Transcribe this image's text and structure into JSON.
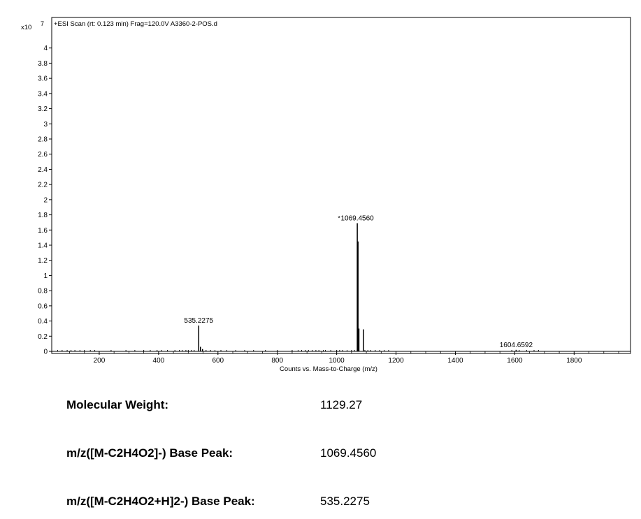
{
  "chart_data": {
    "type": "bar",
    "title": "+ESI Scan (rt: 0.123 min) Frag=120.0V A3360-2-POS.d",
    "xlabel": "Counts vs. Mass-to-Charge (m/z)",
    "ylabel": "",
    "y_exponent_label": "x10",
    "y_exponent": "7",
    "xlim": [
      40,
      1990
    ],
    "ylim": [
      0,
      4.2
    ],
    "x_ticks": [
      200,
      400,
      600,
      800,
      1000,
      1200,
      1400,
      1600,
      1800
    ],
    "y_ticks": [
      0,
      0.2,
      0.4,
      0.6,
      0.8,
      1,
      1.2,
      1.4,
      1.6,
      1.8,
      2,
      2.2,
      2.4,
      2.6,
      2.8,
      3,
      3.2,
      3.4,
      3.6,
      3.8,
      4
    ],
    "grid": false,
    "legend": "none",
    "line_color": "#000000",
    "peaks": [
      {
        "x": 535.2275,
        "y": 0.34
      },
      {
        "x": 541,
        "y": 0.06
      },
      {
        "x": 548,
        "y": 0.03
      },
      {
        "x": 1069.456,
        "y": 1.69
      },
      {
        "x": 1072,
        "y": 1.45
      },
      {
        "x": 1075,
        "y": 0.3
      },
      {
        "x": 1090,
        "y": 0.29
      },
      {
        "x": 1604.6592,
        "y": 0.02
      }
    ],
    "noise": [
      60,
      75,
      92,
      105,
      118,
      135,
      150,
      170,
      185,
      240,
      290,
      320,
      350,
      372,
      395,
      410,
      430,
      455,
      470,
      480,
      492,
      500,
      510,
      520,
      560,
      575,
      590,
      610,
      630,
      660,
      690,
      720,
      760,
      800,
      850,
      870,
      882,
      895,
      905,
      918,
      930,
      940,
      955,
      962,
      980,
      1000,
      1010,
      1020,
      1035,
      1050,
      1060,
      1095,
      1105,
      1115,
      1130,
      1145,
      1160,
      1175,
      1590,
      1615,
      1640,
      1665,
      1680
    ],
    "annotations": [
      {
        "text": "535.2275",
        "x": 535.2275,
        "y": 0.34
      },
      {
        "text": "1069.4560",
        "x": 1069.456,
        "y": 1.69,
        "marker": "*"
      },
      {
        "text": "1604.6592",
        "x": 1604.6592,
        "y": 0.02
      }
    ]
  },
  "info": {
    "molecular_weight_label": "Molecular Weight:",
    "molecular_weight_value": "1129.27",
    "base_peak_1_label": "m/z([M-C2H4O2]-) Base Peak:",
    "base_peak_1_value": "1069.4560",
    "base_peak_2_label": "m/z([M-C2H4O2+H]2-) Base Peak:",
    "base_peak_2_value": "535.2275"
  }
}
